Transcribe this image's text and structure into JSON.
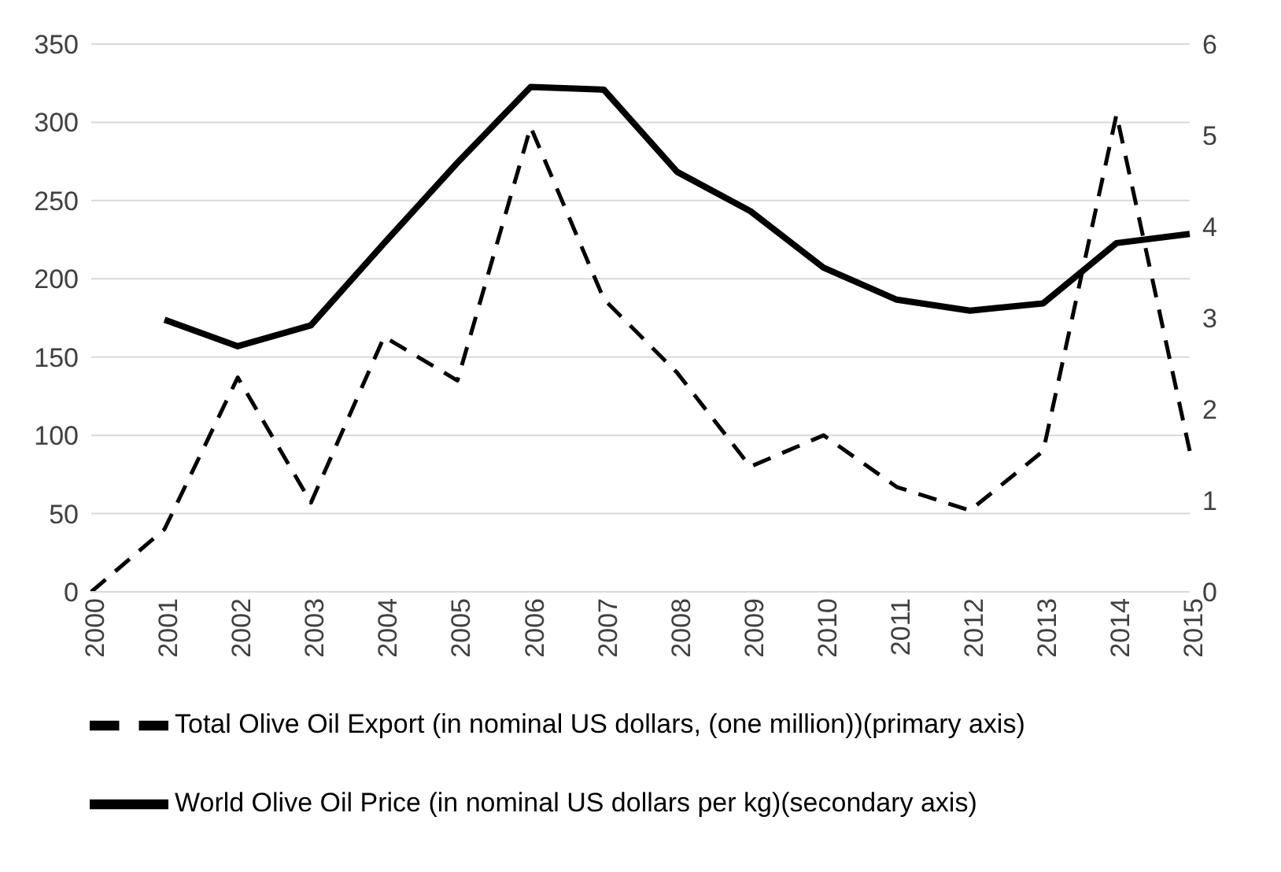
{
  "chart_data": {
    "type": "line",
    "categories": [
      "2000",
      "2001",
      "2002",
      "2003",
      "2004",
      "2005",
      "2006",
      "2007",
      "2008",
      "2009",
      "2010",
      "2011",
      "2012",
      "2013",
      "2014",
      "2015"
    ],
    "series": [
      {
        "name": "Total Olive Oil Export (in nominal US dollars, (one million))(primary axis)",
        "color": "#000000",
        "line_style": "dashed",
        "values": [
          0,
          40,
          137,
          57,
          163,
          135,
          297,
          187,
          140,
          80,
          100,
          67,
          52,
          90,
          305,
          90
        ]
      },
      {
        "name": "World Olive Oil Price (in nominal US dollars per kg)(secondary axis)",
        "color": "#000000",
        "line_style": "solid",
        "axis": "y2",
        "values": [
          null,
          2.98,
          2.69,
          2.92,
          3.82,
          4.7,
          5.53,
          5.5,
          4.6,
          4.17,
          3.55,
          3.2,
          3.08,
          3.16,
          3.82,
          3.92
        ]
      }
    ],
    "ylim": [
      0,
      350
    ],
    "yticks": [
      0,
      50,
      100,
      150,
      200,
      250,
      300,
      350
    ],
    "y2lim": [
      0,
      6
    ],
    "y2ticks": [
      0,
      1,
      2,
      3,
      4,
      5,
      6
    ],
    "grid": "y",
    "legend": "bottom",
    "marker": "none"
  }
}
